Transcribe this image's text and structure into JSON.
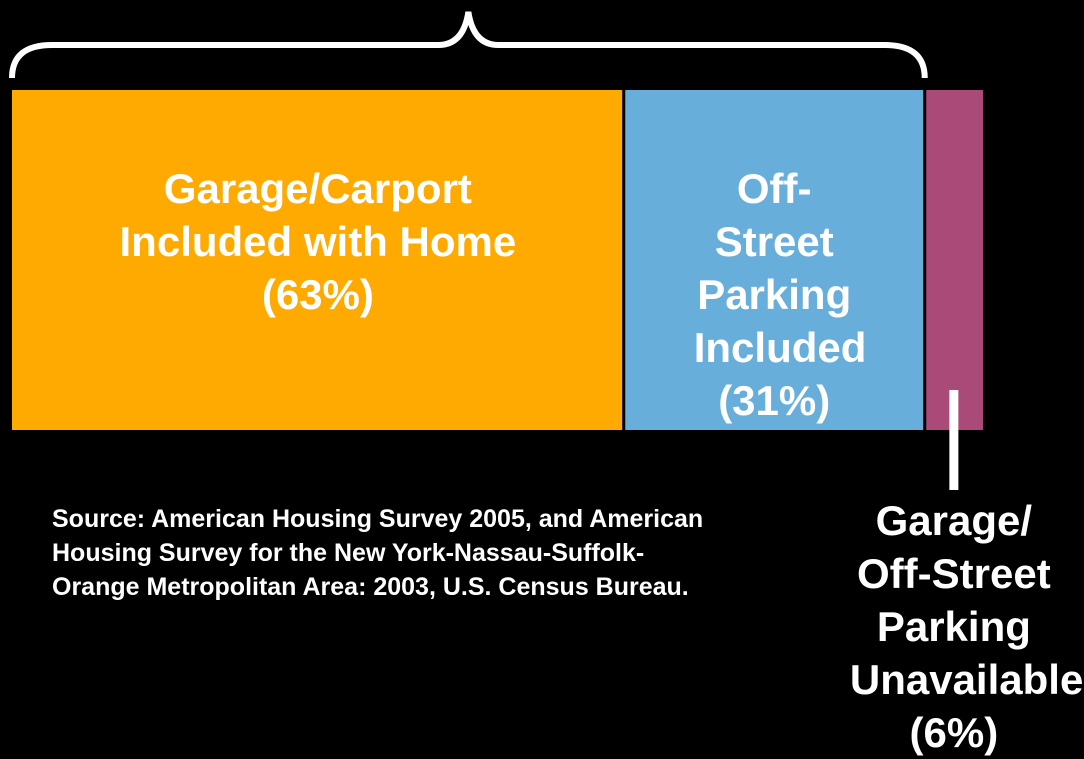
{
  "chart_data": {
    "type": "stacked-bar",
    "categories": [
      "Garage/Carport Included with Home",
      "Off-Street Parking Included",
      "Garage/Off-Street Parking Unavailable"
    ],
    "values": [
      63,
      31,
      6
    ],
    "value_labels": [
      "(63%)",
      "(31%)",
      "(6%)"
    ],
    "colors": [
      "#ffaa00",
      "#67aeda",
      "#a94a79"
    ],
    "xlim": [
      0,
      100
    ],
    "source": "Source: American Housing Survey 2005, and American Housing Survey for the New York-Nassau-Suffolk-Orange Metropolitan Area: 2003, U.S. Census Bureau."
  }
}
